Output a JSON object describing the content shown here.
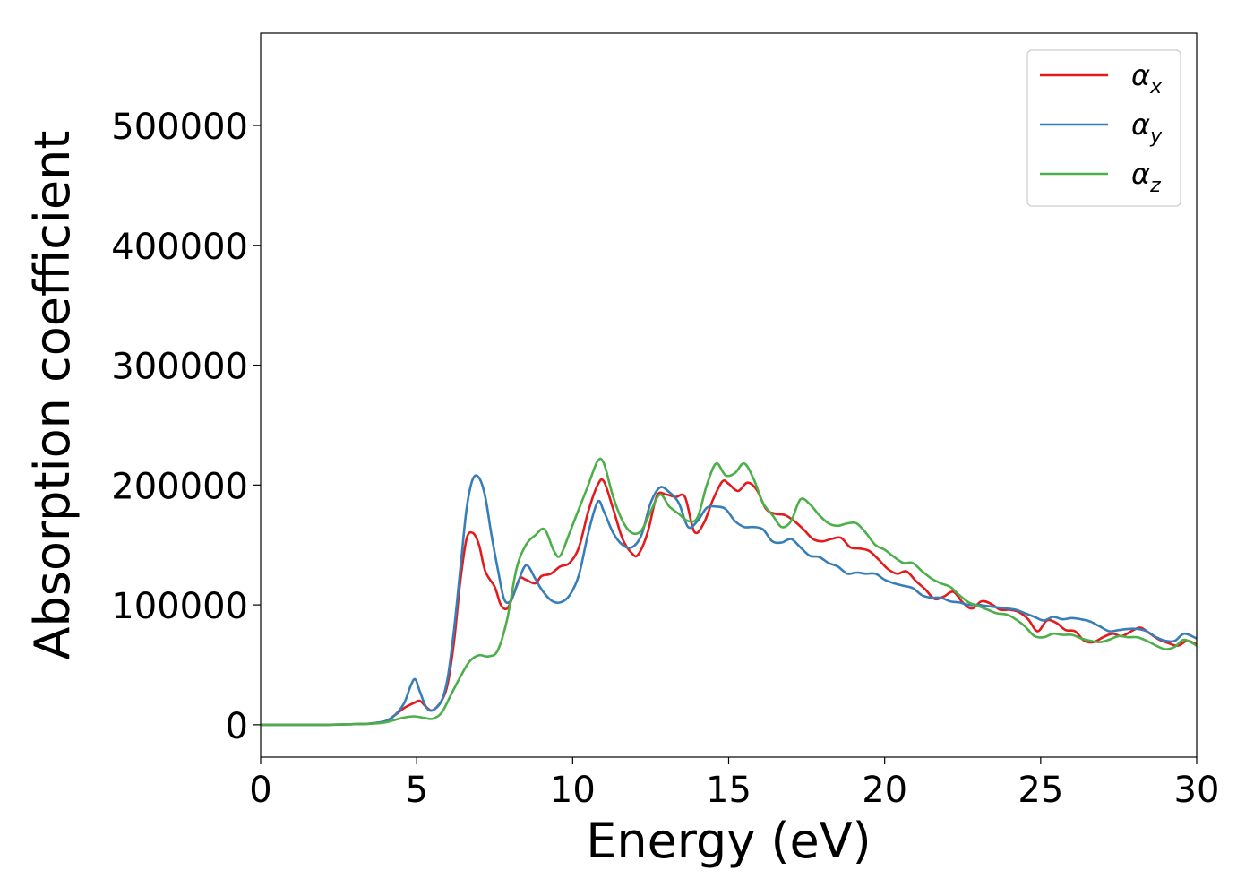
{
  "chart_data": {
    "type": "line",
    "title": "",
    "xlabel": "Energy (eV)",
    "ylabel": "Absorption coefficient",
    "xlim": [
      0,
      30
    ],
    "ylim": [
      -27000,
      577000
    ],
    "xticks": [
      0,
      5,
      10,
      15,
      20,
      25,
      30
    ],
    "yticks": [
      0,
      100000,
      200000,
      300000,
      400000,
      500000
    ],
    "grid": false,
    "legend_position": "top-right",
    "series": [
      {
        "name": "αx",
        "symbol": "α",
        "subscript": "x",
        "color": "#e41a1c",
        "x": [
          0,
          1,
          2,
          3,
          3.5,
          4,
          4.3,
          4.6,
          4.9,
          5.1,
          5.3,
          5.5,
          5.8,
          6.0,
          6.2,
          6.4,
          6.6,
          6.8,
          7.0,
          7.2,
          7.5,
          7.7,
          7.9,
          8.1,
          8.3,
          8.5,
          8.8,
          9.0,
          9.3,
          9.6,
          9.9,
          10.2,
          10.5,
          10.8,
          11.0,
          11.3,
          11.6,
          11.9,
          12.1,
          12.4,
          12.7,
          13.0,
          13.3,
          13.6,
          13.9,
          14.2,
          14.5,
          14.8,
          15.0,
          15.3,
          15.6,
          15.9,
          16.2,
          16.5,
          16.8,
          17.1,
          17.4,
          17.7,
          18.0,
          18.3,
          18.6,
          18.9,
          19.2,
          19.5,
          19.8,
          20.1,
          20.4,
          20.7,
          21.0,
          21.3,
          21.6,
          21.9,
          22.2,
          22.5,
          22.8,
          23.1,
          23.4,
          23.7,
          24.0,
          24.3,
          24.6,
          24.9,
          25.2,
          25.5,
          25.8,
          26.1,
          26.4,
          26.7,
          27.0,
          27.3,
          27.6,
          27.9,
          28.2,
          28.5,
          28.8,
          29.1,
          29.4,
          29.7,
          30.0
        ],
        "y": [
          0,
          0,
          0,
          500,
          1000,
          3000,
          8000,
          14000,
          18000,
          20000,
          15000,
          12000,
          20000,
          35000,
          70000,
          120000,
          155000,
          160000,
          150000,
          128000,
          115000,
          100000,
          97000,
          108000,
          122000,
          121000,
          118000,
          124000,
          126000,
          132000,
          135000,
          148000,
          178000,
          200000,
          203000,
          180000,
          155000,
          143000,
          142000,
          160000,
          191000,
          192000,
          190000,
          190000,
          161000,
          168000,
          188000,
          203000,
          201000,
          195000,
          202000,
          196000,
          180000,
          176000,
          175000,
          170000,
          163000,
          155000,
          153000,
          155000,
          156000,
          148000,
          147000,
          145000,
          138000,
          130000,
          126000,
          128000,
          120000,
          113000,
          105000,
          107000,
          111000,
          102000,
          97000,
          103000,
          101000,
          96000,
          96000,
          94000,
          88000,
          78000,
          87000,
          85000,
          79000,
          78000,
          70000,
          69000,
          73000,
          76000,
          74000,
          78000,
          81000,
          76000,
          71000,
          68000,
          66000,
          70000,
          67000
        ]
      },
      {
        "name": "αy",
        "symbol": "α",
        "subscript": "y",
        "color": "#377eb8",
        "x": [
          0,
          1,
          2,
          3,
          3.5,
          4,
          4.3,
          4.6,
          4.8,
          4.95,
          5.1,
          5.3,
          5.5,
          5.8,
          6.0,
          6.2,
          6.4,
          6.6,
          6.8,
          7.0,
          7.2,
          7.4,
          7.6,
          7.8,
          8.0,
          8.2,
          8.5,
          8.8,
          9.0,
          9.3,
          9.6,
          9.9,
          10.2,
          10.5,
          10.8,
          11.0,
          11.3,
          11.6,
          11.9,
          12.2,
          12.5,
          12.8,
          13.1,
          13.4,
          13.7,
          14.0,
          14.3,
          14.6,
          14.9,
          15.2,
          15.5,
          15.8,
          16.1,
          16.4,
          16.7,
          17.0,
          17.3,
          17.6,
          17.9,
          18.2,
          18.5,
          18.8,
          19.1,
          19.4,
          19.7,
          20.0,
          20.3,
          20.6,
          20.9,
          21.2,
          21.5,
          21.8,
          22.1,
          22.4,
          22.7,
          23.0,
          23.3,
          23.6,
          23.9,
          24.2,
          24.5,
          24.8,
          25.1,
          25.4,
          25.7,
          26.0,
          26.3,
          26.6,
          26.9,
          27.2,
          27.5,
          27.8,
          28.1,
          28.4,
          28.7,
          29.0,
          29.3,
          29.6,
          30.0
        ],
        "y": [
          0,
          0,
          0,
          500,
          1000,
          3000,
          8000,
          18000,
          32000,
          38000,
          28000,
          15000,
          12000,
          20000,
          40000,
          80000,
          130000,
          180000,
          205000,
          206000,
          190000,
          158000,
          130000,
          105000,
          103000,
          115000,
          133000,
          122000,
          113000,
          104000,
          102000,
          108000,
          125000,
          160000,
          186000,
          178000,
          160000,
          150000,
          148000,
          158000,
          185000,
          198000,
          194000,
          185000,
          165000,
          170000,
          181000,
          182000,
          180000,
          170000,
          165000,
          165000,
          163000,
          153000,
          152000,
          155000,
          148000,
          141000,
          140000,
          135000,
          132000,
          126000,
          127000,
          126000,
          126000,
          121000,
          118000,
          116000,
          114000,
          108000,
          106000,
          106000,
          103000,
          102000,
          100000,
          100000,
          99000,
          98000,
          97000,
          96000,
          93000,
          90000,
          87000,
          90000,
          88000,
          89000,
          88000,
          86000,
          82000,
          78000,
          79000,
          80000,
          80000,
          78000,
          73000,
          70000,
          70000,
          76000,
          72000
        ]
      },
      {
        "name": "αz",
        "symbol": "α",
        "subscript": "z",
        "color": "#4daf4a",
        "x": [
          0,
          1,
          2,
          3,
          3.5,
          4,
          4.3,
          4.6,
          4.9,
          5.2,
          5.5,
          5.8,
          6.1,
          6.4,
          6.7,
          7.0,
          7.3,
          7.6,
          7.9,
          8.2,
          8.5,
          8.8,
          9.1,
          9.4,
          9.6,
          9.9,
          10.2,
          10.5,
          10.8,
          11.0,
          11.3,
          11.6,
          11.9,
          12.2,
          12.5,
          12.8,
          13.1,
          13.4,
          13.7,
          14.0,
          14.3,
          14.6,
          14.9,
          15.2,
          15.5,
          15.8,
          16.1,
          16.4,
          16.7,
          17.0,
          17.3,
          17.6,
          17.9,
          18.2,
          18.5,
          18.8,
          19.1,
          19.4,
          19.7,
          20.0,
          20.3,
          20.6,
          20.9,
          21.2,
          21.5,
          21.8,
          22.1,
          22.4,
          22.7,
          23.0,
          23.3,
          23.6,
          23.9,
          24.2,
          24.5,
          24.8,
          25.1,
          25.4,
          25.7,
          26.0,
          26.3,
          26.6,
          26.9,
          27.2,
          27.5,
          27.8,
          28.1,
          28.4,
          28.7,
          29.0,
          29.3,
          29.6,
          30.0
        ],
        "y": [
          0,
          0,
          0,
          500,
          800,
          2000,
          4000,
          6000,
          7000,
          6000,
          5000,
          10000,
          25000,
          40000,
          53000,
          58000,
          57000,
          62000,
          88000,
          130000,
          150000,
          158000,
          163000,
          145000,
          141000,
          160000,
          180000,
          200000,
          220000,
          218000,
          190000,
          170000,
          160000,
          162000,
          178000,
          192000,
          182000,
          176000,
          170000,
          173000,
          200000,
          218000,
          208000,
          210000,
          218000,
          205000,
          185000,
          175000,
          165000,
          170000,
          188000,
          184000,
          175000,
          168000,
          166000,
          168000,
          168000,
          160000,
          150000,
          146000,
          140000,
          135000,
          135000,
          128000,
          122000,
          118000,
          115000,
          108000,
          102000,
          99000,
          96000,
          93000,
          92000,
          88000,
          82000,
          74000,
          73000,
          76000,
          75000,
          75000,
          72000,
          70000,
          69000,
          71000,
          74000,
          73000,
          73000,
          70000,
          66000,
          63000,
          65000,
          71000,
          66000
        ]
      }
    ]
  }
}
